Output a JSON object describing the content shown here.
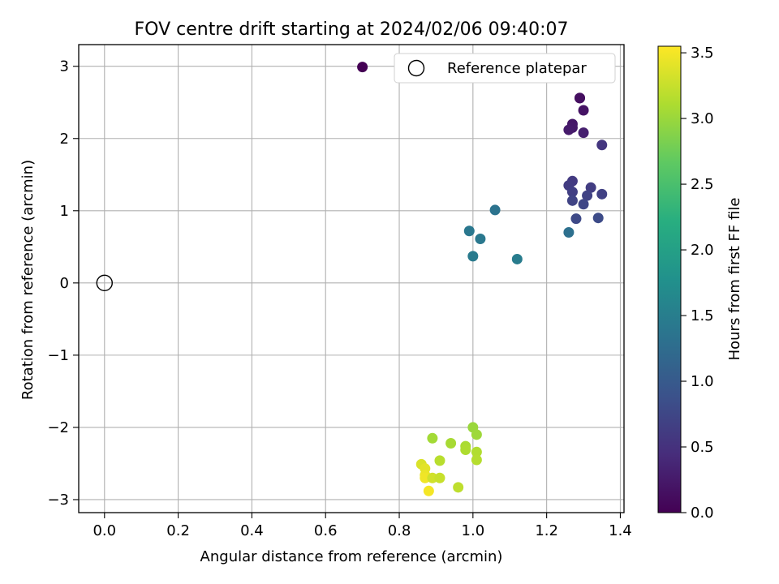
{
  "chart_data": {
    "type": "scatter",
    "title": "FOV centre drift starting at 2024/02/06 09:40:07",
    "xlabel": "Angular distance from reference (arcmin)",
    "ylabel": "Rotation from reference (arcmin)",
    "xlim": [
      -0.07,
      1.41
    ],
    "ylim": [
      -3.18,
      3.3
    ],
    "x_ticks": [
      0.0,
      0.2,
      0.4,
      0.6,
      0.8,
      1.0,
      1.2,
      1.4
    ],
    "x_tick_labels": [
      "0.0",
      "0.2",
      "0.4",
      "0.6",
      "0.8",
      "1.0",
      "1.2",
      "1.4"
    ],
    "y_ticks": [
      -3,
      -2,
      -1,
      0,
      1,
      2,
      3
    ],
    "y_tick_labels": [
      "−3",
      "−2",
      "−1",
      "0",
      "1",
      "2",
      "3"
    ],
    "grid": true,
    "legend": {
      "placement": "top-right",
      "entries": [
        "Reference platepar"
      ]
    },
    "reference_point": {
      "x": 0.0,
      "y": 0.0,
      "name": "Reference platepar"
    },
    "colorbar": {
      "label": "Hours from first FF file",
      "colormap": "viridis",
      "range": [
        0.0,
        3.55
      ],
      "ticks": [
        0.0,
        0.5,
        1.0,
        1.5,
        2.0,
        2.5,
        3.0,
        3.5
      ],
      "tick_labels": [
        "0.0",
        "0.5",
        "1.0",
        "1.5",
        "2.0",
        "2.5",
        "3.0",
        "3.5"
      ]
    },
    "points": [
      {
        "x": 0.7,
        "y": 2.99,
        "hours": 0.0
      },
      {
        "x": 1.29,
        "y": 2.56,
        "hours": 0.12
      },
      {
        "x": 1.29,
        "y": 2.56,
        "hours": 0.14
      },
      {
        "x": 1.3,
        "y": 2.39,
        "hours": 0.18
      },
      {
        "x": 1.27,
        "y": 2.2,
        "hours": 0.22
      },
      {
        "x": 1.27,
        "y": 2.15,
        "hours": 0.24
      },
      {
        "x": 1.26,
        "y": 2.12,
        "hours": 0.26
      },
      {
        "x": 1.3,
        "y": 2.08,
        "hours": 0.3
      },
      {
        "x": 1.35,
        "y": 1.91,
        "hours": 0.55
      },
      {
        "x": 1.27,
        "y": 1.41,
        "hours": 0.6
      },
      {
        "x": 1.26,
        "y": 1.35,
        "hours": 0.62
      },
      {
        "x": 1.32,
        "y": 1.32,
        "hours": 0.64
      },
      {
        "x": 1.27,
        "y": 1.26,
        "hours": 0.66
      },
      {
        "x": 1.35,
        "y": 1.23,
        "hours": 0.68
      },
      {
        "x": 1.31,
        "y": 1.21,
        "hours": 0.7
      },
      {
        "x": 1.27,
        "y": 1.14,
        "hours": 0.72
      },
      {
        "x": 1.3,
        "y": 1.09,
        "hours": 0.74
      },
      {
        "x": 1.28,
        "y": 0.89,
        "hours": 0.78
      },
      {
        "x": 1.34,
        "y": 0.9,
        "hours": 0.8
      },
      {
        "x": 1.26,
        "y": 0.7,
        "hours": 1.3
      },
      {
        "x": 1.06,
        "y": 1.01,
        "hours": 1.35
      },
      {
        "x": 0.99,
        "y": 0.72,
        "hours": 1.4
      },
      {
        "x": 1.02,
        "y": 0.61,
        "hours": 1.42
      },
      {
        "x": 1.0,
        "y": 0.37,
        "hours": 1.45
      },
      {
        "x": 1.12,
        "y": 0.33,
        "hours": 1.48
      },
      {
        "x": 1.0,
        "y": -2.0,
        "hours": 3.0
      },
      {
        "x": 1.01,
        "y": -2.1,
        "hours": 3.02
      },
      {
        "x": 0.89,
        "y": -2.15,
        "hours": 3.05
      },
      {
        "x": 0.94,
        "y": -2.22,
        "hours": 3.07
      },
      {
        "x": 0.98,
        "y": -2.26,
        "hours": 3.09
      },
      {
        "x": 0.98,
        "y": -2.31,
        "hours": 3.11
      },
      {
        "x": 1.01,
        "y": -2.34,
        "hours": 3.13
      },
      {
        "x": 1.01,
        "y": -2.45,
        "hours": 3.15
      },
      {
        "x": 0.91,
        "y": -2.46,
        "hours": 3.17
      },
      {
        "x": 0.86,
        "y": -2.51,
        "hours": 3.35
      },
      {
        "x": 0.87,
        "y": -2.57,
        "hours": 3.4
      },
      {
        "x": 0.87,
        "y": -2.66,
        "hours": 3.45
      },
      {
        "x": 0.87,
        "y": -2.7,
        "hours": 3.48
      },
      {
        "x": 0.89,
        "y": -2.7,
        "hours": 3.3
      },
      {
        "x": 0.91,
        "y": -2.7,
        "hours": 3.25
      },
      {
        "x": 0.96,
        "y": -2.83,
        "hours": 3.2
      },
      {
        "x": 0.88,
        "y": -2.88,
        "hours": 3.5
      }
    ]
  }
}
